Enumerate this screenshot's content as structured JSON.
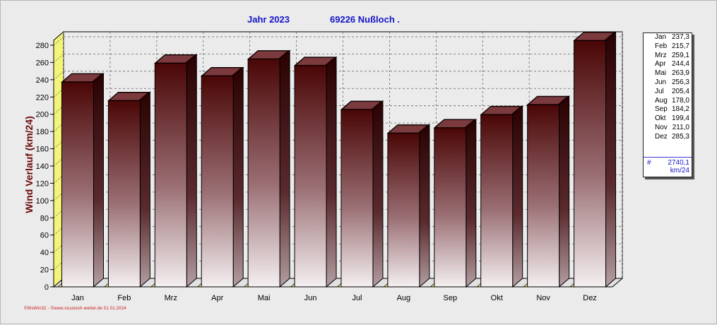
{
  "header": {
    "year_label": "Jahr  2023",
    "station_label": "69226 Nußloch ."
  },
  "chart_data": {
    "type": "bar",
    "categories": [
      "Jan",
      "Feb",
      "Mrz",
      "Apr",
      "Mai",
      "Jun",
      "Jul",
      "Aug",
      "Sep",
      "Okt",
      "Nov",
      "Dez"
    ],
    "values": [
      237.3,
      215.7,
      259.1,
      244.4,
      263.9,
      256.3,
      205.4,
      178.0,
      184.2,
      199.4,
      211.0,
      285.3
    ],
    "title": "Jahr  2023     69226 Nußloch .",
    "xlabel": "",
    "ylabel": "Wind Verlauf  (km/24)",
    "ylim": [
      0,
      290
    ],
    "yticks": [
      0,
      20,
      40,
      60,
      80,
      100,
      120,
      140,
      160,
      180,
      200,
      220,
      240,
      260,
      280
    ],
    "grid": true,
    "legend_position": "right"
  },
  "legend": {
    "entries": [
      {
        "month": "Jan",
        "value": "237,3"
      },
      {
        "month": "Feb",
        "value": "215,7"
      },
      {
        "month": "Mrz",
        "value": "259,1"
      },
      {
        "month": "Apr",
        "value": "244,4"
      },
      {
        "month": "Mai",
        "value": "263,9"
      },
      {
        "month": "Jun",
        "value": "256,3"
      },
      {
        "month": "Jul",
        "value": "205,4"
      },
      {
        "month": "Aug",
        "value": "178,0"
      },
      {
        "month": "Sep",
        "value": "184,2"
      },
      {
        "month": "Okt",
        "value": "199,4"
      },
      {
        "month": "Nov",
        "value": "211,0"
      },
      {
        "month": "Dez",
        "value": "285,3"
      }
    ],
    "total_symbol": "#",
    "total_value": "2740,1",
    "total_unit": "km/24"
  },
  "footer": {
    "credit": "©WsWin32 - ©www.nussloch-wetter.de  01.01.2024"
  },
  "colors": {
    "bar_top": "#4a0606",
    "bar_bottom": "#f4eff0",
    "floor": "#f4f47a",
    "title": "#1414c8",
    "ylabel": "#6b0a0a",
    "footer": "#c81414"
  }
}
